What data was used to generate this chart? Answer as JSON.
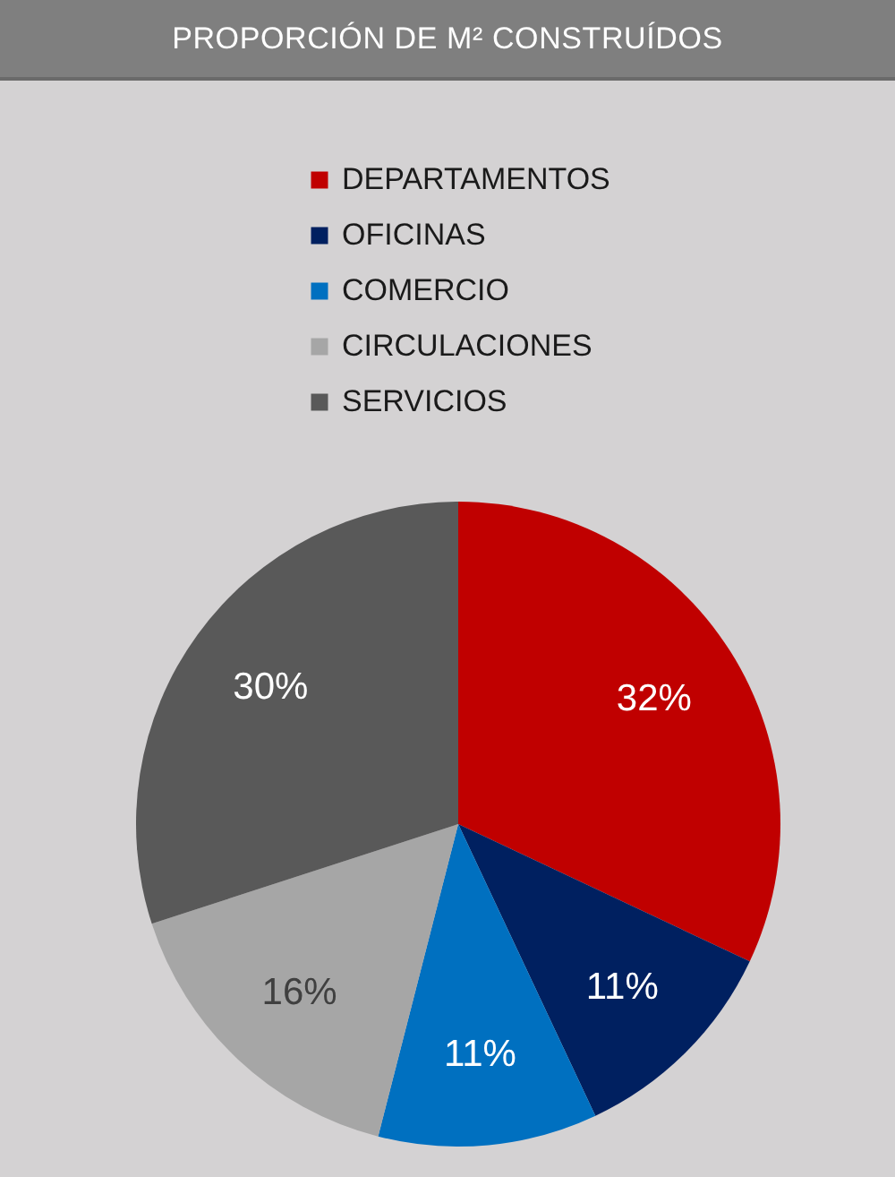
{
  "chart_data": {
    "type": "pie",
    "title": "PROPORCIÓN DE M² CONSTRUÍDOS",
    "categories": [
      "DEPARTAMENTOS",
      "OFICINAS",
      "COMERCIO",
      "CIRCULACIONES",
      "SERVICIOS"
    ],
    "values": [
      32,
      11,
      11,
      16,
      30
    ],
    "value_labels": [
      "32%",
      "11%",
      "11%",
      "16%",
      "30%"
    ],
    "colors": [
      "#c00000",
      "#002060",
      "#0070c0",
      "#a6a6a6",
      "#595959"
    ],
    "legend": "top"
  }
}
